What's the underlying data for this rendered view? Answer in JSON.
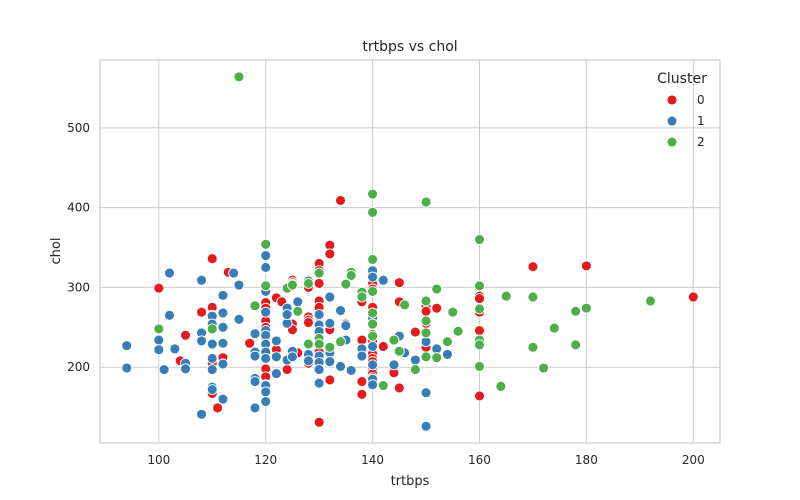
{
  "chart_data": {
    "type": "scatter",
    "title": "trtbps vs chol",
    "xlabel": "trtbps",
    "ylabel": "chol",
    "xlim": [
      89,
      205
    ],
    "ylim": [
      105,
      585
    ],
    "xticks": [
      100,
      120,
      140,
      160,
      180,
      200
    ],
    "yticks": [
      200,
      300,
      400,
      500
    ],
    "grid": true,
    "legend": {
      "title": "Cluster",
      "placement": "top-right"
    },
    "series": [
      {
        "name": "0",
        "color": "#e41a1c",
        "points": [
          [
            100,
            299
          ],
          [
            104,
            208
          ],
          [
            105,
            240
          ],
          [
            108,
            269
          ],
          [
            110,
            336
          ],
          [
            110,
            275
          ],
          [
            110,
            265
          ],
          [
            110,
            254
          ],
          [
            110,
            211
          ],
          [
            110,
            205
          ],
          [
            110,
            167
          ],
          [
            111,
            149
          ],
          [
            112,
            212
          ],
          [
            113,
            319
          ],
          [
            117,
            230
          ],
          [
            118,
            277
          ],
          [
            120,
            281
          ],
          [
            120,
            274
          ],
          [
            120,
            266
          ],
          [
            120,
            258
          ],
          [
            120,
            250
          ],
          [
            120,
            236
          ],
          [
            120,
            230
          ],
          [
            120,
            215
          ],
          [
            120,
            211
          ],
          [
            120,
            198
          ],
          [
            120,
            188
          ],
          [
            120,
            178
          ],
          [
            122,
            287
          ],
          [
            122,
            222
          ],
          [
            123,
            282
          ],
          [
            124,
            197
          ],
          [
            125,
            309
          ],
          [
            125,
            306
          ],
          [
            125,
            254
          ],
          [
            125,
            247
          ],
          [
            126,
            218
          ],
          [
            128,
            300
          ],
          [
            128,
            263
          ],
          [
            128,
            259
          ],
          [
            128,
            256
          ],
          [
            128,
            205
          ],
          [
            130,
            330
          ],
          [
            130,
            321
          ],
          [
            130,
            305
          ],
          [
            130,
            283
          ],
          [
            130,
            275
          ],
          [
            130,
            264
          ],
          [
            130,
            255
          ],
          [
            130,
            250
          ],
          [
            130,
            240
          ],
          [
            130,
            219
          ],
          [
            130,
            211
          ],
          [
            130,
            204
          ],
          [
            130,
            196
          ],
          [
            130,
            131
          ],
          [
            132,
            353
          ],
          [
            132,
            342
          ],
          [
            132,
            247
          ],
          [
            132,
            184
          ],
          [
            134,
            409
          ],
          [
            134,
            201
          ],
          [
            135,
            254
          ],
          [
            138,
            282
          ],
          [
            138,
            234
          ],
          [
            138,
            182
          ],
          [
            138,
            166
          ],
          [
            140,
            311
          ],
          [
            140,
            305
          ],
          [
            140,
            298
          ],
          [
            140,
            275
          ],
          [
            140,
            264
          ],
          [
            140,
            241
          ],
          [
            140,
            233
          ],
          [
            140,
            217
          ],
          [
            140,
            211
          ],
          [
            140,
            207
          ],
          [
            140,
            199
          ],
          [
            140,
            192
          ],
          [
            140,
            187
          ],
          [
            142,
            309
          ],
          [
            142,
            226
          ],
          [
            144,
            200
          ],
          [
            144,
            193
          ],
          [
            145,
            306
          ],
          [
            145,
            282
          ],
          [
            145,
            174
          ],
          [
            146,
            218
          ],
          [
            148,
            244
          ],
          [
            150,
            276
          ],
          [
            150,
            270
          ],
          [
            150,
            255
          ],
          [
            150,
            231
          ],
          [
            150,
            225
          ],
          [
            152,
            274
          ],
          [
            160,
            289
          ],
          [
            160,
            286
          ],
          [
            160,
            269
          ],
          [
            160,
            246
          ],
          [
            160,
            164
          ],
          [
            170,
            326
          ],
          [
            180,
            327
          ],
          [
            200,
            288
          ]
        ]
      },
      {
        "name": "1",
        "color": "#377eb8",
        "points": [
          [
            94,
            227
          ],
          [
            94,
            199
          ],
          [
            100,
            234
          ],
          [
            100,
            222
          ],
          [
            101,
            197
          ],
          [
            102,
            318
          ],
          [
            102,
            265
          ],
          [
            103,
            223
          ],
          [
            105,
            205
          ],
          [
            105,
            198
          ],
          [
            108,
            309
          ],
          [
            108,
            243
          ],
          [
            108,
            233
          ],
          [
            108,
            141
          ],
          [
            110,
            264
          ],
          [
            110,
            254
          ],
          [
            110,
            229
          ],
          [
            110,
            211
          ],
          [
            110,
            197
          ],
          [
            110,
            175
          ],
          [
            110,
            172
          ],
          [
            112,
            290
          ],
          [
            112,
            268
          ],
          [
            112,
            250
          ],
          [
            112,
            230
          ],
          [
            112,
            204
          ],
          [
            112,
            160
          ],
          [
            114,
            318
          ],
          [
            115,
            303
          ],
          [
            115,
            260
          ],
          [
            118,
            242
          ],
          [
            118,
            219
          ],
          [
            118,
            214
          ],
          [
            118,
            186
          ],
          [
            118,
            182
          ],
          [
            118,
            149
          ],
          [
            120,
            340
          ],
          [
            120,
            325
          ],
          [
            120,
            295
          ],
          [
            120,
            269
          ],
          [
            120,
            246
          ],
          [
            120,
            240
          ],
          [
            120,
            229
          ],
          [
            120,
            219
          ],
          [
            120,
            211
          ],
          [
            120,
            177
          ],
          [
            120,
            169
          ],
          [
            120,
            157
          ],
          [
            122,
            233
          ],
          [
            122,
            213
          ],
          [
            122,
            192
          ],
          [
            124,
            274
          ],
          [
            124,
            255
          ],
          [
            124,
            266
          ],
          [
            124,
            209
          ],
          [
            125,
            220
          ],
          [
            125,
            213
          ],
          [
            126,
            282
          ],
          [
            128,
            308
          ],
          [
            128,
            216
          ],
          [
            128,
            208
          ],
          [
            130,
            266
          ],
          [
            130,
            253
          ],
          [
            130,
            245
          ],
          [
            130,
            233
          ],
          [
            130,
            214
          ],
          [
            130,
            206
          ],
          [
            130,
            197
          ],
          [
            130,
            180
          ],
          [
            132,
            288
          ],
          [
            132,
            255
          ],
          [
            132,
            218
          ],
          [
            132,
            207
          ],
          [
            134,
            271
          ],
          [
            134,
            201
          ],
          [
            135,
            234
          ],
          [
            135,
            252
          ],
          [
            136,
            196
          ],
          [
            138,
            223
          ],
          [
            138,
            214
          ],
          [
            140,
            321
          ],
          [
            140,
            313
          ],
          [
            140,
            262
          ],
          [
            140,
            226
          ],
          [
            140,
            203
          ],
          [
            140,
            185
          ],
          [
            140,
            178
          ],
          [
            142,
            309
          ],
          [
            144,
            203
          ],
          [
            145,
            239
          ],
          [
            146,
            218
          ],
          [
            148,
            209
          ],
          [
            150,
            232
          ],
          [
            150,
            168
          ],
          [
            150,
            126
          ],
          [
            152,
            223
          ],
          [
            154,
            216
          ]
        ]
      },
      {
        "name": "2",
        "color": "#4daf4a",
        "points": [
          [
            100,
            248
          ],
          [
            110,
            248
          ],
          [
            115,
            564
          ],
          [
            118,
            277
          ],
          [
            120,
            354
          ],
          [
            120,
            302
          ],
          [
            124,
            299
          ],
          [
            125,
            304
          ],
          [
            125,
            303
          ],
          [
            126,
            270
          ],
          [
            128,
            305
          ],
          [
            128,
            229
          ],
          [
            130,
            318
          ],
          [
            130,
            236
          ],
          [
            130,
            229
          ],
          [
            132,
            225
          ],
          [
            134,
            232
          ],
          [
            135,
            304
          ],
          [
            136,
            319
          ],
          [
            136,
            315
          ],
          [
            138,
            294
          ],
          [
            138,
            288
          ],
          [
            140,
            417
          ],
          [
            140,
            394
          ],
          [
            140,
            335
          ],
          [
            140,
            295
          ],
          [
            140,
            268
          ],
          [
            140,
            254
          ],
          [
            140,
            239
          ],
          [
            142,
            177
          ],
          [
            144,
            234
          ],
          [
            145,
            220
          ],
          [
            146,
            278
          ],
          [
            148,
            197
          ],
          [
            150,
            407
          ],
          [
            150,
            283
          ],
          [
            150,
            258
          ],
          [
            150,
            243
          ],
          [
            150,
            213
          ],
          [
            152,
            298
          ],
          [
            152,
            212
          ],
          [
            154,
            232
          ],
          [
            155,
            269
          ],
          [
            156,
            245
          ],
          [
            160,
            360
          ],
          [
            160,
            302
          ],
          [
            160,
            273
          ],
          [
            160,
            234
          ],
          [
            160,
            228
          ],
          [
            160,
            201
          ],
          [
            164,
            176
          ],
          [
            165,
            289
          ],
          [
            170,
            288
          ],
          [
            170,
            225
          ],
          [
            172,
            199
          ],
          [
            174,
            249
          ],
          [
            178,
            270
          ],
          [
            178,
            228
          ],
          [
            180,
            274
          ],
          [
            192,
            283
          ]
        ]
      }
    ]
  }
}
